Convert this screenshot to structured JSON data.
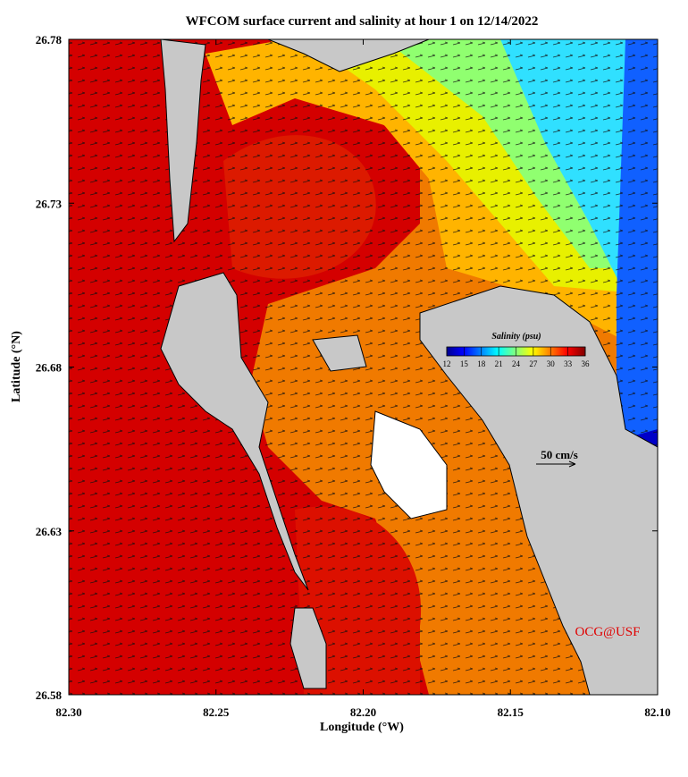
{
  "chart_data": {
    "type": "map",
    "title": "WFCOM surface current and salinity at hour 1 on 12/14/2022",
    "x_label": "Longitude (°W)",
    "y_label": "Latitude (°N)",
    "xlim": [
      82.3,
      82.1
    ],
    "xticks": [
      {
        "value": 82.3,
        "label": "82.30"
      },
      {
        "value": 82.25,
        "label": "82.25"
      },
      {
        "value": 82.2,
        "label": "82.20"
      },
      {
        "value": 82.15,
        "label": "82.15"
      },
      {
        "value": 82.1,
        "label": "82.10"
      }
    ],
    "ylim": [
      26.58,
      26.78
    ],
    "yticks": [
      26.58,
      26.63,
      26.68,
      26.73,
      26.78
    ],
    "colorbar": {
      "title": "Salinity (psu)",
      "lim": [
        12,
        36
      ],
      "ticks": [
        12,
        15,
        18,
        21,
        24,
        27,
        30,
        33,
        36
      ]
    },
    "annotations": [
      "50 cm/s",
      "OCG@USF"
    ]
  }
}
